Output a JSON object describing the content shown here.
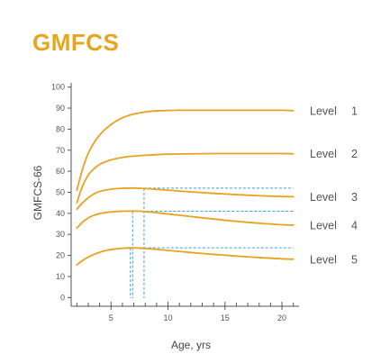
{
  "title": "GMFCS",
  "chart_data": {
    "type": "line",
    "title": "GMFCS",
    "xlabel": "Age, yrs",
    "ylabel": "GMFCS-66",
    "xlim": [
      1.5,
      21.5
    ],
    "ylim": [
      -2,
      102
    ],
    "x_ticks": [
      5,
      10,
      15,
      20
    ],
    "x_minor_ticks": [
      2,
      3,
      4,
      6,
      7,
      8,
      9,
      11,
      12,
      13,
      14,
      16,
      17,
      18,
      19,
      21
    ],
    "y_ticks": [
      0,
      10,
      20,
      30,
      40,
      50,
      60,
      70,
      80,
      90,
      100
    ],
    "grid": false,
    "legend": "inline labels at right end of each curve",
    "series": [
      {
        "name": "Level 1",
        "label_word": "Level",
        "label_num": "1",
        "color": "#e8a21e",
        "x": [
          2,
          2.5,
          3,
          3.5,
          4,
          4.5,
          5,
          5.5,
          6,
          6.5,
          7,
          8,
          9,
          10,
          11,
          12,
          14,
          16,
          18,
          20,
          21
        ],
        "y": [
          51,
          61,
          68.5,
          73.5,
          77.2,
          80,
          82.2,
          84,
          85.4,
          86.4,
          87.2,
          88.2,
          88.7,
          88.9,
          89,
          89,
          89,
          89,
          89,
          89,
          88.8
        ]
      },
      {
        "name": "Level 2",
        "label_word": "Level",
        "label_num": "2",
        "color": "#e8a21e",
        "x": [
          2,
          2.5,
          3,
          3.5,
          4,
          4.5,
          5,
          6,
          7,
          8,
          9,
          10,
          12,
          14,
          16,
          18,
          20,
          21
        ],
        "y": [
          45,
          53,
          58.2,
          61.2,
          63.2,
          64.5,
          65.4,
          66.6,
          67.2,
          67.6,
          67.9,
          68.1,
          68.3,
          68.4,
          68.4,
          68.4,
          68.4,
          68.3
        ]
      },
      {
        "name": "Level 3",
        "label_word": "Level",
        "label_num": "3",
        "color": "#e8a21e",
        "x": [
          2,
          2.5,
          3,
          3.5,
          4,
          5,
          6,
          7,
          7.5,
          8,
          9,
          10,
          12,
          14,
          16,
          18,
          20,
          21
        ],
        "y": [
          42,
          45,
          47.4,
          49.2,
          50.4,
          51.5,
          51.9,
          52,
          51.9,
          51.8,
          51.4,
          51,
          50.2,
          49.5,
          48.9,
          48.4,
          48,
          47.9
        ]
      },
      {
        "name": "Level 4",
        "label_word": "Level",
        "label_num": "4",
        "color": "#e8a21e",
        "x": [
          2,
          2.5,
          3,
          3.5,
          4,
          5,
          6,
          6.9,
          7.5,
          8,
          9,
          10,
          12,
          14,
          16,
          18,
          20,
          21
        ],
        "y": [
          33,
          35.8,
          37.8,
          39.1,
          39.9,
          40.7,
          41,
          41.1,
          41,
          40.8,
          40.3,
          39.7,
          38.5,
          37.3,
          36.2,
          35.3,
          34.6,
          34.4
        ]
      },
      {
        "name": "Level 5",
        "label_word": "Level",
        "label_num": "5",
        "color": "#e8a21e",
        "x": [
          2,
          2.5,
          3,
          3.5,
          4,
          4.5,
          5,
          6,
          6.9,
          7.5,
          8,
          9,
          10,
          12,
          14,
          16,
          18,
          20,
          21
        ],
        "y": [
          15.5,
          17.6,
          19.2,
          20.5,
          21.5,
          22.3,
          22.8,
          23.4,
          23.6,
          23.5,
          23.3,
          22.9,
          22.4,
          21.4,
          20.5,
          19.7,
          19,
          18.4,
          18.2
        ]
      }
    ],
    "reference_lines": [
      {
        "name": "level-3-peak",
        "color": "#3aa0e6",
        "peak_x": 7.9,
        "peak_y": 52
      },
      {
        "name": "level-4-peak",
        "color": "#3aa0e6",
        "peak_x": 6.9,
        "peak_y": 41
      },
      {
        "name": "level-5-peak",
        "color": "#3aa0e6",
        "peak_x": 6.7,
        "peak_y": 23.6
      }
    ],
    "reference_x_end": 21
  }
}
